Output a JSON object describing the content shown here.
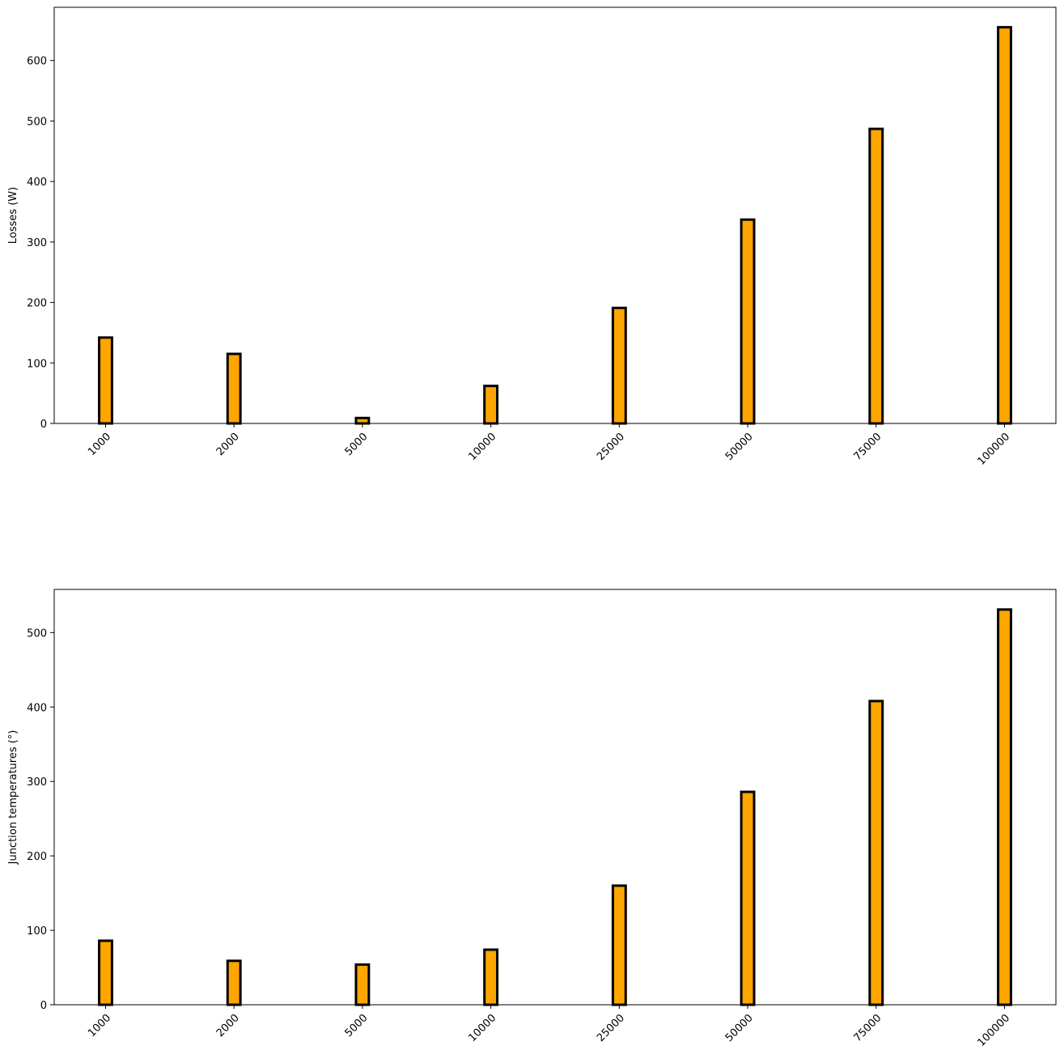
{
  "chart_data": [
    {
      "type": "bar",
      "ylabel": "Losses (W)",
      "categories": [
        "1000",
        "2000",
        "5000",
        "10000",
        "25000",
        "50000",
        "75000",
        "100000"
      ],
      "values": [
        142,
        115,
        9,
        62,
        191,
        337,
        487,
        655
      ],
      "color": "#ffa500",
      "edgecolor": "#000000",
      "ylim": [
        0,
        688
      ],
      "yticks": [
        0,
        100,
        200,
        300,
        400,
        500,
        600
      ]
    },
    {
      "type": "bar",
      "ylabel": "Junction temperatures (°)",
      "categories": [
        "1000",
        "2000",
        "5000",
        "10000",
        "25000",
        "50000",
        "75000",
        "100000"
      ],
      "values": [
        86,
        59,
        54,
        74,
        160,
        286,
        408,
        531
      ],
      "color": "#ffa500",
      "edgecolor": "#000000",
      "ylim": [
        0,
        558
      ],
      "yticks": [
        0,
        100,
        200,
        300,
        400,
        500
      ]
    }
  ]
}
